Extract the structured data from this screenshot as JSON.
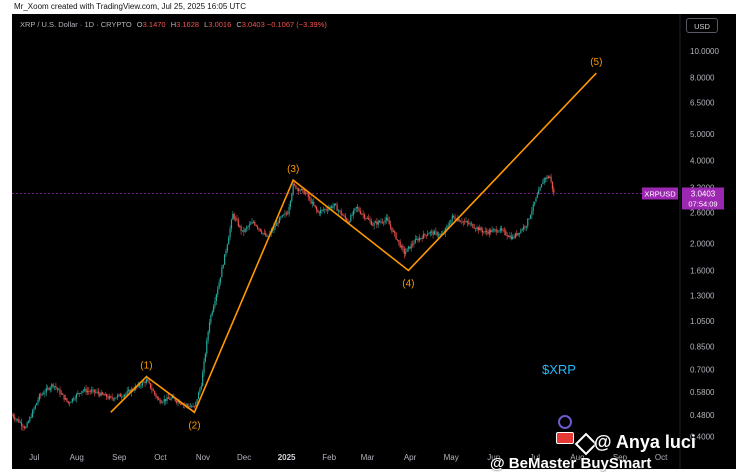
{
  "attribution": "Mr_Xoom created with TradingView.com, Jul 25, 2025 16:05 UTC",
  "legend": {
    "symbol": "XRP / U.S. Dollar · 1D · CRYPTO",
    "o_label": "O",
    "o_value": "3.1470",
    "h_label": "H",
    "h_value": "3.1628",
    "l_label": "L",
    "l_value": "3.0016",
    "c_label": "C",
    "c_value": "3.0403",
    "change": "−0.1067 (−3.39%)"
  },
  "currency_button": "USD",
  "ticker_tag": "$XRP",
  "watermark": {
    "line1": "@ Anya luci",
    "line2": "@ BeMaster BuySmart"
  },
  "price_badge": {
    "symbol": "XRPUSD",
    "price": "3.0403",
    "countdown": "07:54:09"
  },
  "colors": {
    "background": "#000000",
    "up_candle": "#26a69a",
    "down_candle": "#ef5350",
    "wave_line": "#ff9800",
    "wave_label": "#ff9800",
    "price_badge": "#9c27b0",
    "ticker_tag": "#29b6f6"
  },
  "chart_data": {
    "type": "line",
    "title": "XRP / U.S. Dollar · 1D · CRYPTO",
    "y_scale": "log",
    "x_ticks": [
      "Jul",
      "Aug",
      "Sep",
      "Oct",
      "Nov",
      "Dec",
      "2025",
      "Feb",
      "Mar",
      "Apr",
      "May",
      "Jun",
      "Jul",
      "Aug",
      "Sep",
      "Oct"
    ],
    "y_ticks": [
      10.0,
      8.0,
      6.5,
      5.0,
      4.0,
      3.2,
      2.6,
      2.0,
      1.6,
      1.3,
      1.05,
      0.85,
      0.7,
      0.58,
      0.48,
      0.4
    ],
    "y_tick_labels": [
      "10.0000",
      "8.0000",
      "6.5000",
      "5.0000",
      "4.0000",
      "3.2000",
      "2.6000",
      "2.0000",
      "1.6000",
      "1.3000",
      "1.0500",
      "0.8500",
      "0.7000",
      "0.5800",
      "0.4800",
      "0.4000"
    ],
    "ylim": [
      0.37,
      11.5
    ],
    "grid": false,
    "price_path": [
      [
        "2024-06-25",
        0.48
      ],
      [
        "2024-07-05",
        0.43
      ],
      [
        "2024-07-15",
        0.56
      ],
      [
        "2024-07-25",
        0.62
      ],
      [
        "2024-08-05",
        0.53
      ],
      [
        "2024-08-15",
        0.59
      ],
      [
        "2024-08-25",
        0.58
      ],
      [
        "2024-09-05",
        0.55
      ],
      [
        "2024-09-15",
        0.57
      ],
      [
        "2024-09-25",
        0.61
      ],
      [
        "2024-10-01",
        0.64
      ],
      [
        "2024-10-10",
        0.54
      ],
      [
        "2024-10-20",
        0.55
      ],
      [
        "2024-10-30",
        0.52
      ],
      [
        "2024-11-05",
        0.51
      ],
      [
        "2024-11-10",
        0.62
      ],
      [
        "2024-11-16",
        1.05
      ],
      [
        "2024-11-23",
        1.45
      ],
      [
        "2024-11-28",
        1.9
      ],
      [
        "2024-12-03",
        2.55
      ],
      [
        "2024-12-10",
        2.2
      ],
      [
        "2024-12-18",
        2.4
      ],
      [
        "2024-12-28",
        2.1
      ],
      [
        "2025-01-06",
        2.45
      ],
      [
        "2025-01-12",
        2.6
      ],
      [
        "2025-01-16",
        3.25
      ],
      [
        "2025-01-25",
        3.05
      ],
      [
        "2025-02-03",
        2.6
      ],
      [
        "2025-02-15",
        2.75
      ],
      [
        "2025-02-25",
        2.4
      ],
      [
        "2025-03-03",
        2.7
      ],
      [
        "2025-03-15",
        2.35
      ],
      [
        "2025-03-25",
        2.45
      ],
      [
        "2025-04-07",
        1.85
      ],
      [
        "2025-04-15",
        2.05
      ],
      [
        "2025-04-25",
        2.2
      ],
      [
        "2025-05-05",
        2.15
      ],
      [
        "2025-05-12",
        2.5
      ],
      [
        "2025-05-25",
        2.35
      ],
      [
        "2025-06-05",
        2.2
      ],
      [
        "2025-06-15",
        2.25
      ],
      [
        "2025-06-25",
        2.1
      ],
      [
        "2025-07-05",
        2.35
      ],
      [
        "2025-07-12",
        2.9
      ],
      [
        "2025-07-18",
        3.45
      ],
      [
        "2025-07-22",
        3.5
      ],
      [
        "2025-07-25",
        3.04
      ]
    ],
    "wave_count": [
      {
        "label": "",
        "x": "2024-09-05",
        "y": 0.49
      },
      {
        "label": "(1)",
        "x": "2024-10-01",
        "y": 0.66
      },
      {
        "label": "(2)",
        "x": "2024-11-05",
        "y": 0.49
      },
      {
        "label": "(3)",
        "x": "2025-01-16",
        "y": 3.4
      },
      {
        "label": "(4)",
        "x": "2025-04-10",
        "y": 1.6
      },
      {
        "label": "(5)",
        "x": "2025-08-25",
        "y": 8.3
      }
    ],
    "last_price": 3.0403
  }
}
